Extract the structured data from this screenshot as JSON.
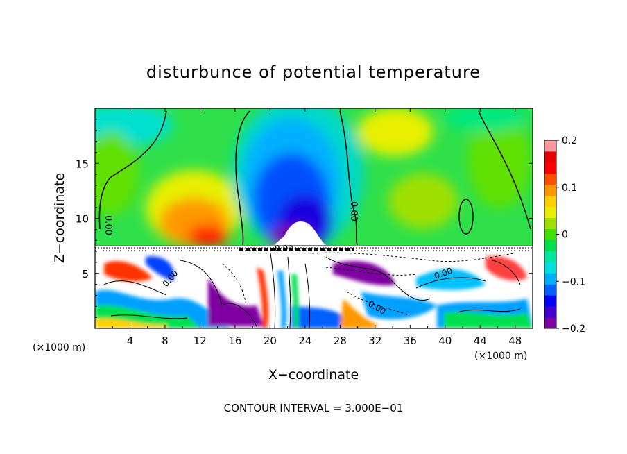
{
  "chart_data": {
    "type": "heatmap",
    "title": "disturbunce of potential temperature",
    "xlabel": "X−coordinate",
    "ylabel": "Z−coordinate",
    "x_unit_left": "(×1000 m)",
    "x_unit_right": "(×1000 m)",
    "footer": "CONTOUR INTERVAL = 3.000E−01",
    "xlim": [
      0,
      50
    ],
    "ylim": [
      0,
      20
    ],
    "x_ticks": [
      "4",
      "8",
      "12",
      "16",
      "20",
      "24",
      "28",
      "32",
      "36",
      "40",
      "44",
      "48"
    ],
    "y_ticks": [
      "5",
      "10",
      "15"
    ],
    "colorbar": {
      "range": [
        -0.2,
        0.2
      ],
      "tick_labels": [
        "0.2",
        "0.1",
        "0",
        "−0.1",
        "−0.2"
      ],
      "colors": [
        "#7f00a0",
        "#4400cc",
        "#0000ff",
        "#0060ff",
        "#00b0ff",
        "#00e0e0",
        "#00e8a0",
        "#00e050",
        "#40e000",
        "#a0e000",
        "#e8f000",
        "#ffd000",
        "#ff9800",
        "#ff5000",
        "#ff0000",
        "#e80000",
        "#ff9898"
      ]
    },
    "contour_labels": [
      "0.00",
      "0.00",
      "0.00",
      "0.00",
      "0.00",
      "0.00"
    ],
    "upper_field": [
      {
        "x": 12,
        "z": 9.5,
        "value": 0.12
      },
      {
        "x": 9,
        "z": 12,
        "value": 0.09
      },
      {
        "x": 5,
        "z": 14,
        "value": 0.06
      },
      {
        "x": 22,
        "z": 10,
        "value": -0.19
      },
      {
        "x": 21,
        "z": 14,
        "value": -0.13
      },
      {
        "x": 24,
        "z": 12,
        "value": -0.17
      },
      {
        "x": 35,
        "z": 19,
        "value": 0.06
      },
      {
        "x": 40,
        "z": 11,
        "value": 0.04
      },
      {
        "x": 46,
        "z": 16,
        "value": 0.02
      },
      {
        "x": 2,
        "z": 18,
        "value": -0.04
      }
    ]
  }
}
